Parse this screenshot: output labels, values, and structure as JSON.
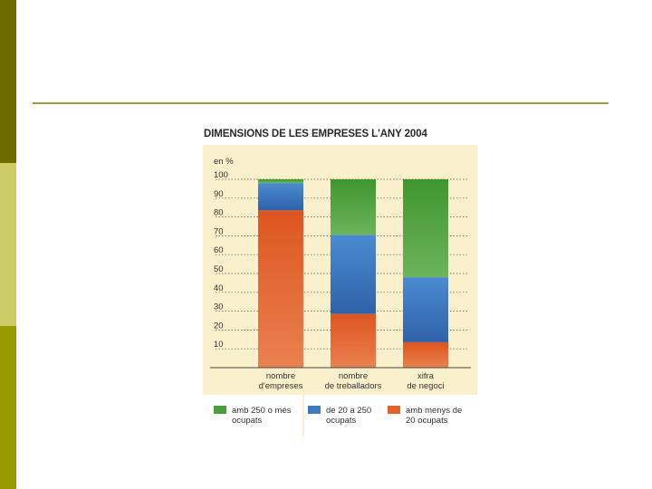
{
  "slide": {
    "colors": {
      "side_top": "#6b6b00",
      "side_mid": "#cccc66",
      "side_bottom": "#999900",
      "rule": "#9f9a3a",
      "chart_bg": "#faf1cc"
    }
  },
  "chart_data": {
    "type": "bar",
    "stacked": true,
    "title": "DIMENSIONS DE LES EMPRESES L'ANY 2004",
    "ylabel": "en %",
    "ylim": [
      0,
      100
    ],
    "yticks": [
      10,
      20,
      30,
      40,
      50,
      60,
      70,
      80,
      90,
      100
    ],
    "grid": true,
    "categories": [
      [
        "nombre",
        "d'empreses"
      ],
      [
        "nombre",
        "de treballadors"
      ],
      [
        "xifra",
        "de negoci"
      ]
    ],
    "series": [
      {
        "key": "small",
        "name": [
          "amb menys de",
          "20 ocupats"
        ],
        "color": "#e2622a",
        "values": [
          83.5,
          28.5,
          13.5
        ]
      },
      {
        "key": "medium",
        "name": [
          "de 20 a 250",
          "ocupats"
        ],
        "color": "#3d78c0",
        "values": [
          14.5,
          42,
          34.5
        ]
      },
      {
        "key": "large",
        "name": [
          "amb 250 o més",
          "ocupats"
        ],
        "color": "#4a9e3c",
        "values": [
          2,
          29.5,
          52
        ]
      }
    ],
    "legend_order": [
      "large",
      "medium",
      "small"
    ],
    "legend_position": "bottom"
  }
}
